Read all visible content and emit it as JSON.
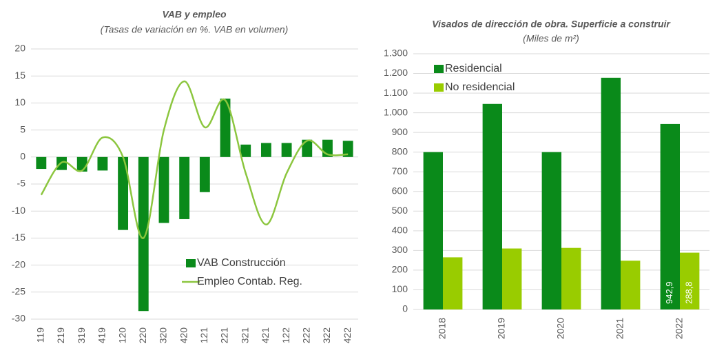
{
  "chart_data": [
    {
      "type": "combo",
      "title": "VAB y empleo",
      "subtitle": "(Tasas de variación en %. VAB en volumen)",
      "categories": [
        "119",
        "219",
        "319",
        "419",
        "120",
        "220",
        "320",
        "420",
        "121",
        "221",
        "321",
        "421",
        "122",
        "222",
        "322",
        "422"
      ],
      "series": [
        {
          "name": "VAB Construcción",
          "type": "bar",
          "color": "#0a8a1a",
          "values": [
            -2.2,
            -2.4,
            -2.7,
            -2.5,
            -13.5,
            -28.5,
            -12.2,
            -11.5,
            -6.5,
            10.8,
            2.3,
            2.6,
            2.6,
            3.2,
            3.2,
            3.0
          ]
        },
        {
          "name": "Empleo Contab. Reg.",
          "type": "line",
          "color": "#8cc63f",
          "values": [
            -7,
            -1,
            -2.5,
            3.6,
            0,
            -15,
            5,
            14,
            5.5,
            10.5,
            -3,
            -12.5,
            -3,
            3,
            0.5,
            0.5
          ]
        }
      ],
      "ylim": [
        -30,
        20
      ],
      "yticks": [
        -30,
        -25,
        -20,
        -15,
        -10,
        -5,
        0,
        5,
        10,
        15,
        20
      ],
      "grid": true,
      "legend": "bottom-right"
    },
    {
      "type": "bar",
      "title": "Visados de dirección de obra. Superficie a construir",
      "subtitle": "(Miles de m²)",
      "categories": [
        "2018",
        "2019",
        "2020",
        "2021",
        "2022"
      ],
      "series": [
        {
          "name": "Residencial",
          "color": "#0a8a1a",
          "values": [
            800,
            1045,
            800,
            1178,
            942.9
          ],
          "value_labels": [
            null,
            null,
            null,
            null,
            "942,9"
          ]
        },
        {
          "name": "No residencial",
          "color": "#99cc00",
          "values": [
            265,
            310,
            313,
            248,
            288.8
          ],
          "value_labels": [
            null,
            null,
            null,
            null,
            "288,8"
          ]
        }
      ],
      "ylim": [
        0,
        1300
      ],
      "yticks": [
        0,
        100,
        200,
        300,
        400,
        500,
        600,
        700,
        800,
        900,
        {
          "value": 1000,
          "label": "1.000"
        },
        {
          "value": 1100,
          "label": "1.100"
        },
        {
          "value": 1200,
          "label": "1.200"
        },
        {
          "value": 1300,
          "label": "1.300"
        }
      ],
      "grid": true,
      "legend": "top-left"
    }
  ]
}
